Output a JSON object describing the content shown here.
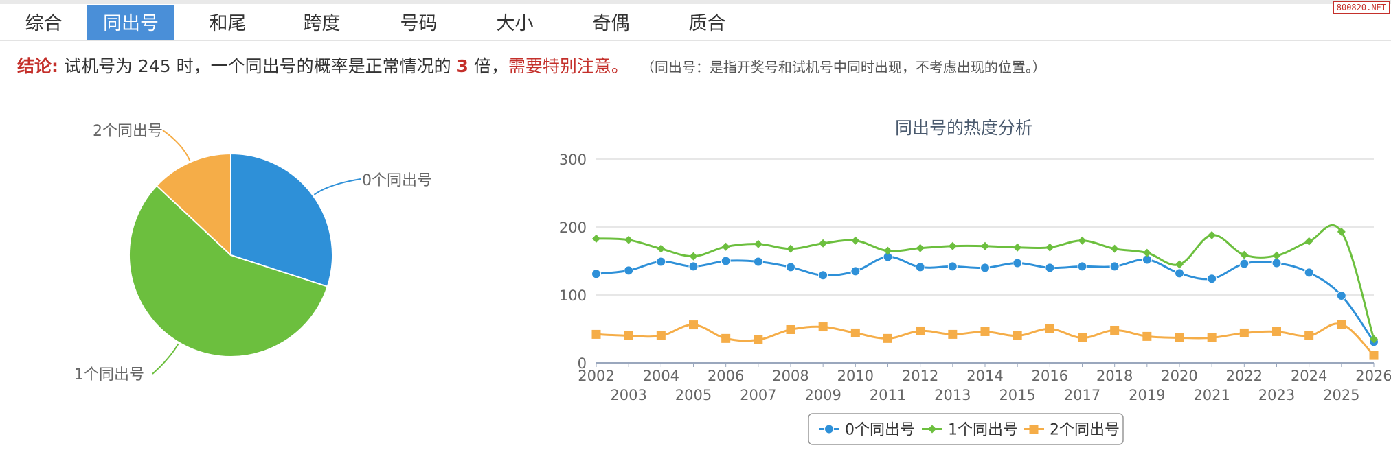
{
  "watermark": "800820.NET",
  "tabs": [
    "综合",
    "同出号",
    "和尾",
    "跨度",
    "号码",
    "大小",
    "奇偶",
    "质合"
  ],
  "active_tab": 1,
  "conclusion": {
    "label": "结论:",
    "text_before": "试机号为 245 时，一个同出号的概率是正常情况的",
    "multiple": "3",
    "text_after": "倍，",
    "warning": "需要特别注意。",
    "note": "（同出号：是指开奖号和试机号中同时出现，不考虑出现的位置。）"
  },
  "chart_data": [
    {
      "type": "pie",
      "labels": [
        "0个同出号",
        "1个同出号",
        "2个同出号"
      ],
      "values": [
        30,
        57,
        13
      ],
      "colors": [
        "#2e90d8",
        "#6cbf3e",
        "#f5ad48"
      ]
    },
    {
      "type": "line",
      "title": "同出号的热度分析",
      "x": [
        "2002",
        "2003",
        "2004",
        "2005",
        "2006",
        "2007",
        "2008",
        "2009",
        "2010",
        "2011",
        "2012",
        "2013",
        "2014",
        "2015",
        "2016",
        "2017",
        "2018",
        "2019",
        "2020",
        "2021",
        "2022",
        "2023",
        "2024",
        "2025",
        "2026"
      ],
      "ylim": [
        0,
        300
      ],
      "yticks": [
        0,
        100,
        200,
        300
      ],
      "grid": true,
      "legend_position": "bottom-center",
      "series": [
        {
          "name": "0个同出号",
          "color": "#2e90d8",
          "marker": "circle",
          "values": [
            131,
            136,
            149,
            142,
            150,
            149,
            141,
            129,
            135,
            156,
            141,
            142,
            140,
            147,
            140,
            142,
            142,
            152,
            132,
            124,
            146,
            147,
            133,
            99,
            31
          ]
        },
        {
          "name": "1个同出号",
          "color": "#6cbf3e",
          "marker": "diamond",
          "values": [
            183,
            181,
            168,
            157,
            171,
            175,
            168,
            176,
            180,
            165,
            169,
            172,
            172,
            170,
            170,
            180,
            168,
            162,
            145,
            188,
            159,
            158,
            179,
            193,
            35
          ]
        },
        {
          "name": "2个同出号",
          "color": "#f5ad48",
          "marker": "square",
          "values": [
            42,
            40,
            40,
            56,
            36,
            34,
            49,
            53,
            44,
            36,
            47,
            42,
            46,
            40,
            50,
            37,
            48,
            39,
            37,
            37,
            44,
            46,
            40,
            57,
            11
          ]
        }
      ]
    }
  ]
}
